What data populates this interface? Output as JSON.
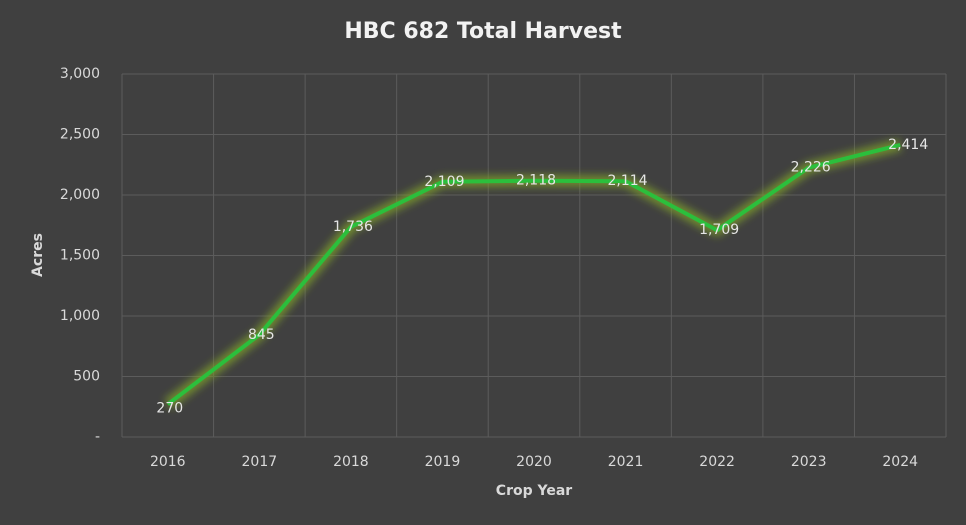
{
  "chart_data": {
    "type": "line",
    "title": "HBC 682 Total Harvest",
    "x_label": "Crop Year",
    "y_label": "Acres",
    "categories": [
      "2016",
      "2017",
      "2018",
      "2019",
      "2020",
      "2021",
      "2022",
      "2023",
      "2024"
    ],
    "values": [
      270,
      845,
      1736,
      2109,
      2118,
      2114,
      1709,
      2226,
      2414
    ],
    "value_labels": [
      "270",
      "845",
      "1,736",
      "2,109",
      "2,118",
      "2,114",
      "1,709",
      "2,226",
      "2,414"
    ],
    "color": "#2bbf3c",
    "ylim": [
      0,
      3000
    ],
    "yticks": [
      {
        "value": 0,
        "label": "-"
      },
      500,
      {
        "value": 1000,
        "label": "1,000"
      },
      {
        "value": 1500,
        "label": "1,500"
      },
      {
        "value": 2000,
        "label": "2,000"
      },
      {
        "value": 2500,
        "label": "2,500"
      },
      {
        "value": 3000,
        "label": "3,000"
      }
    ],
    "grid": true
  }
}
